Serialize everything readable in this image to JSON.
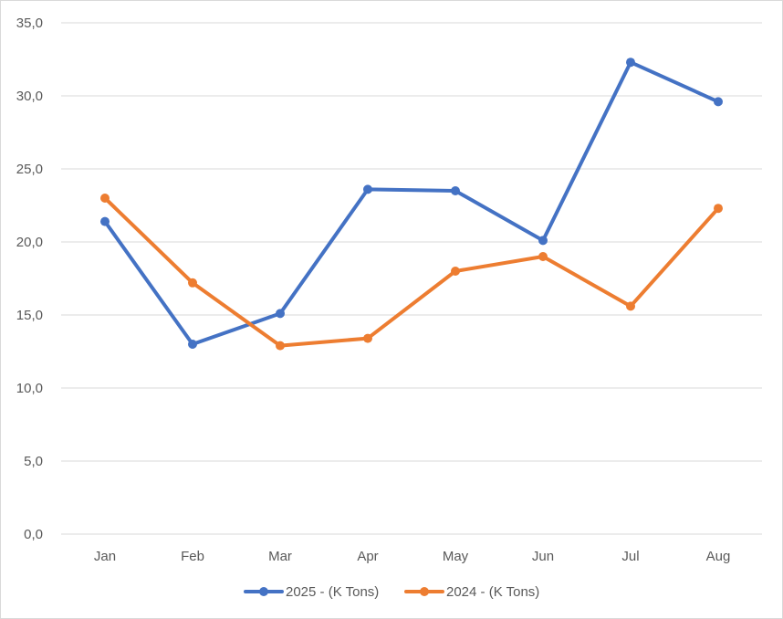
{
  "chart_data": {
    "type": "line",
    "categories": [
      "Jan",
      "Feb",
      "Mar",
      "Apr",
      "May",
      "Jun",
      "Jul",
      "Aug"
    ],
    "series": [
      {
        "name": "2025 - (K Tons)",
        "color": "#4472c4",
        "values": [
          21.4,
          13.0,
          15.1,
          23.6,
          23.5,
          20.1,
          32.3,
          29.6
        ]
      },
      {
        "name": "2024 - (K Tons)",
        "color": "#ed7d31",
        "values": [
          23.0,
          17.2,
          12.9,
          13.4,
          18.0,
          19.0,
          15.6,
          22.3
        ]
      }
    ],
    "ylim": [
      0,
      35
    ],
    "yticks": [
      "0,0",
      "5,0",
      "10,0",
      "15,0",
      "20,0",
      "25,0",
      "30,0",
      "35,0"
    ],
    "grid": true,
    "legend": "bottom",
    "gridColor": "#d9d9d9"
  }
}
